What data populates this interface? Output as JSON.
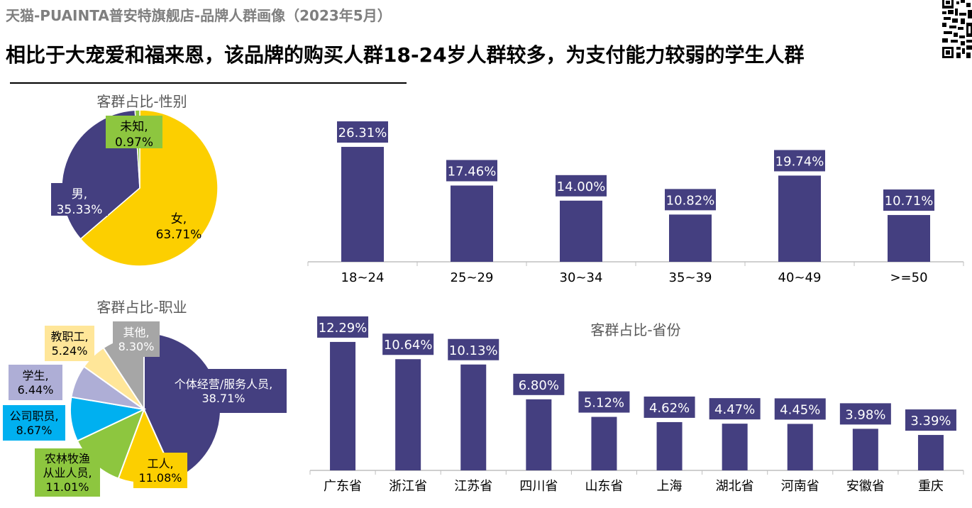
{
  "header": {
    "subtitle": "天猫-PUAINTA普安特旗舰店-品牌人群画像（2023年5月）",
    "headline": "相比于大宠爱和福来恩，该品牌的购买人群18-24岁人群较多，为支付能力较弱的学生人群"
  },
  "colors": {
    "navy": "#443f80",
    "yellow": "#fccf00",
    "green": "#8dc63f",
    "cyan": "#00b0f0",
    "lavender": "#aeaed6",
    "lightyellow": "#ffe699",
    "gray": "#a6a6a6"
  },
  "chart_data": [
    {
      "id": "gender",
      "type": "pie",
      "title": "客群占比-性别",
      "slices": [
        {
          "label": "女",
          "value": 63.71,
          "display": "63.71%",
          "color": "#fccf00"
        },
        {
          "label": "男",
          "value": 35.33,
          "display": "35.33%",
          "color": "#443f80"
        },
        {
          "label": "未知",
          "value": 0.97,
          "display": "0.97%",
          "color": "#8dc63f"
        }
      ]
    },
    {
      "id": "occupation",
      "type": "pie",
      "title": "客群占比-职业",
      "slices": [
        {
          "label": "个体经营/服务人员",
          "value": 38.71,
          "display": "38.71%",
          "color": "#443f80"
        },
        {
          "label": "工人",
          "value": 11.08,
          "display": "11.08%",
          "color": "#fccf00"
        },
        {
          "label": "农林牧渔从业人员",
          "value": 11.01,
          "display": "11.01%",
          "color": "#8dc63f"
        },
        {
          "label": "公司职员",
          "value": 8.67,
          "display": "8.67%",
          "color": "#00b0f0"
        },
        {
          "label": "学生",
          "value": 6.44,
          "display": "6.44%",
          "color": "#aeaed6"
        },
        {
          "label": "教职工",
          "value": 5.24,
          "display": "5.24%",
          "color": "#ffe699"
        },
        {
          "label": "其他",
          "value": 8.3,
          "display": "8.30%",
          "color": "#a6a6a6"
        }
      ]
    },
    {
      "id": "age",
      "type": "bar",
      "title": "",
      "categories": [
        "18~24",
        "25~29",
        "30~34",
        "35~39",
        "40~49",
        ">=50"
      ],
      "values": [
        26.31,
        17.46,
        14.0,
        10.82,
        19.74,
        10.71
      ],
      "labels": [
        "26.31%",
        "17.46%",
        "14.00%",
        "10.82%",
        "19.74%",
        "10.71%"
      ],
      "ylim": [
        0,
        32
      ]
    },
    {
      "id": "province",
      "type": "bar",
      "title": "客群占比-省份",
      "categories": [
        "广东省",
        "浙江省",
        "江苏省",
        "四川省",
        "山东省",
        "上海",
        "湖北省",
        "河南省",
        "安徽省",
        "重庆"
      ],
      "values": [
        12.29,
        10.64,
        10.13,
        6.8,
        5.12,
        4.62,
        4.47,
        4.45,
        3.98,
        3.39
      ],
      "labels": [
        "12.29%",
        "10.64%",
        "10.13%",
        "6.80%",
        "5.12%",
        "4.62%",
        "4.47%",
        "4.45%",
        "3.98%",
        "3.39%"
      ],
      "ylim": [
        0,
        15
      ]
    }
  ]
}
